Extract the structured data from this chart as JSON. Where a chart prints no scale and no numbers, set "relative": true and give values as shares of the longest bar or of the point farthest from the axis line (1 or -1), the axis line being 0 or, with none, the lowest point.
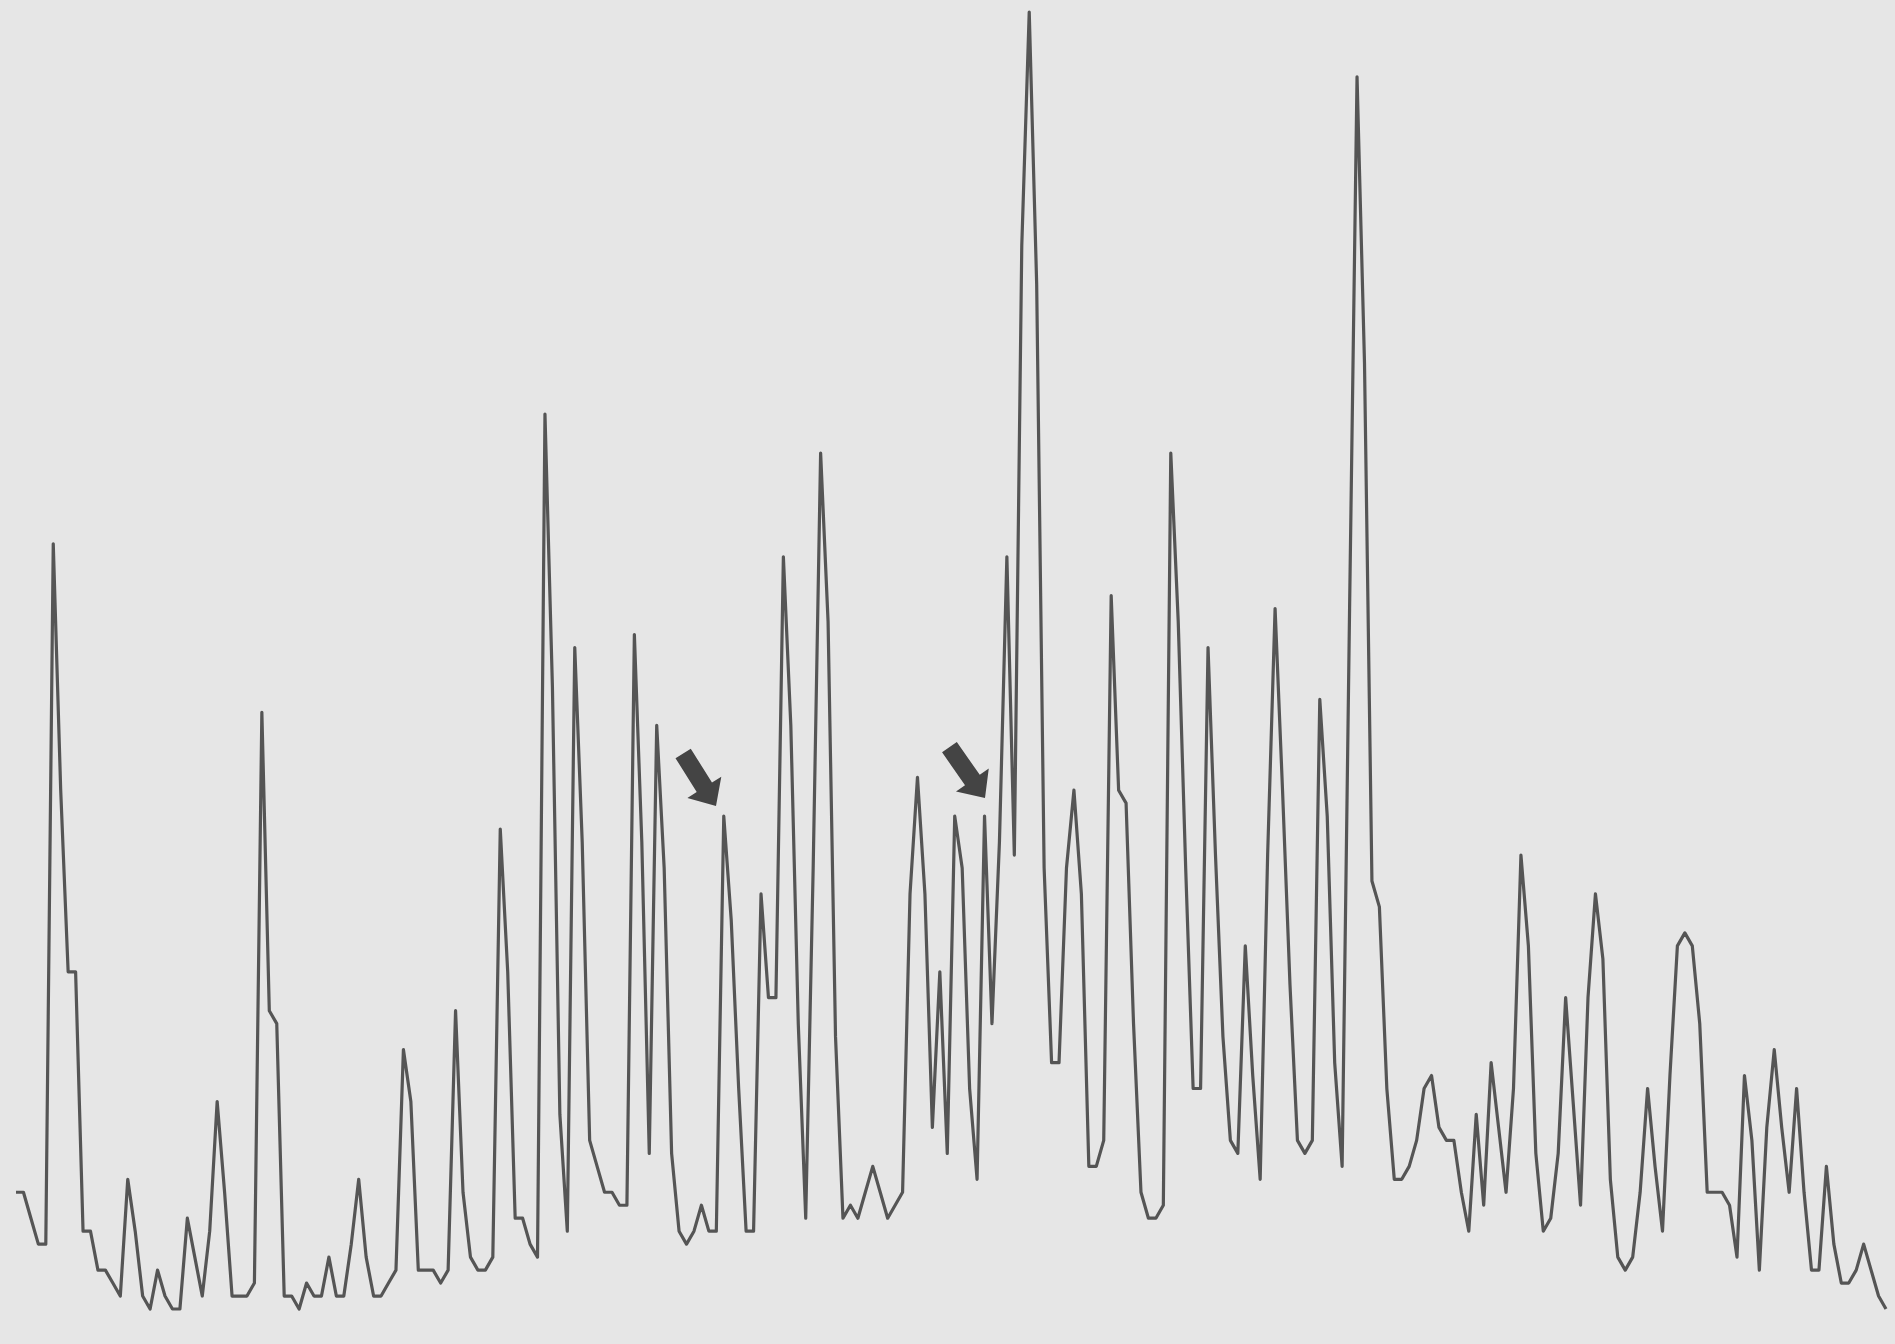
{
  "chart_data": {
    "type": "line",
    "relative": true,
    "categories": [
      null,
      null,
      null,
      null,
      null,
      null,
      null,
      null,
      null,
      null,
      null,
      null,
      null,
      null,
      null,
      null,
      null,
      null,
      null,
      null,
      null,
      null,
      null,
      null,
      null,
      null,
      null,
      null,
      null,
      null,
      null,
      null,
      null,
      null,
      null,
      null,
      null,
      null,
      null,
      null,
      null,
      null,
      null,
      null,
      null,
      null,
      null,
      null,
      null,
      null,
      null,
      null,
      null,
      null,
      null,
      null,
      null,
      null,
      null,
      null,
      null,
      null,
      null,
      null,
      null,
      null,
      null,
      null,
      null,
      null,
      null,
      null,
      null,
      null,
      null,
      null,
      null,
      null,
      null,
      null,
      null,
      null,
      null,
      null,
      null,
      null,
      null,
      null,
      null,
      null,
      null,
      null,
      null,
      null,
      null,
      null,
      null,
      null,
      null,
      null,
      null,
      null,
      null,
      null,
      null,
      null,
      null,
      null,
      null,
      null,
      null,
      null,
      null,
      null,
      null,
      null,
      null,
      null,
      null,
      null,
      null,
      null,
      null,
      null,
      null,
      null,
      null,
      null,
      null,
      null,
      null,
      null,
      null,
      null,
      null,
      null,
      null,
      null,
      null,
      null,
      null,
      null,
      null,
      null,
      null,
      null,
      null,
      null,
      null,
      null,
      null,
      null,
      null,
      null,
      null,
      null,
      null,
      null,
      null,
      null,
      null,
      null,
      null,
      null,
      null,
      null,
      null,
      null,
      null,
      null,
      null,
      null,
      null,
      null,
      null,
      null,
      null,
      null,
      null,
      null,
      null,
      null,
      null,
      null,
      null,
      null,
      null,
      null,
      null,
      null,
      null,
      null,
      null,
      null,
      null,
      null,
      null,
      null,
      null,
      null,
      null,
      null,
      null,
      null,
      null,
      null,
      null,
      null,
      null,
      null,
      null,
      null,
      null,
      null,
      null,
      null,
      null,
      null,
      null,
      null,
      null,
      null,
      null,
      null,
      null,
      null,
      null,
      null,
      null,
      null,
      null,
      null,
      null,
      null,
      null,
      null,
      null,
      null,
      null,
      null,
      null,
      null,
      null,
      null,
      null,
      null,
      null,
      null,
      null,
      null,
      null,
      null
    ],
    "series": [
      {
        "color": "#555555",
        "values": [
          0.09,
          0.09,
          0.07,
          0.05,
          0.05,
          0.59,
          0.4,
          0.26,
          0.26,
          0.06,
          0.06,
          0.03,
          0.03,
          0.02,
          0.01,
          0.1,
          0.06,
          0.01,
          0.0,
          0.03,
          0.01,
          0.0,
          0.0,
          0.07,
          0.04,
          0.01,
          0.06,
          0.16,
          0.09,
          0.01,
          0.01,
          0.01,
          0.02,
          0.46,
          0.23,
          0.22,
          0.01,
          0.01,
          0.0,
          0.02,
          0.01,
          0.01,
          0.04,
          0.01,
          0.01,
          0.05,
          0.1,
          0.04,
          0.01,
          0.01,
          0.02,
          0.03,
          0.2,
          0.16,
          0.03,
          0.03,
          0.03,
          0.02,
          0.03,
          0.23,
          0.09,
          0.04,
          0.03,
          0.03,
          0.04,
          0.37,
          0.26,
          0.07,
          0.07,
          0.05,
          0.04,
          0.69,
          0.48,
          0.15,
          0.06,
          0.51,
          0.36,
          0.13,
          0.11,
          0.09,
          0.09,
          0.08,
          0.08,
          0.52,
          0.36,
          0.12,
          0.45,
          0.34,
          0.12,
          0.06,
          0.05,
          0.06,
          0.08,
          0.06,
          0.06,
          0.38,
          0.3,
          0.17,
          0.06,
          0.06,
          0.32,
          0.24,
          0.24,
          0.58,
          0.45,
          0.22,
          0.07,
          0.34,
          0.66,
          0.53,
          0.21,
          0.07,
          0.08,
          0.07,
          0.09,
          0.11,
          0.09,
          0.07,
          0.08,
          0.09,
          0.32,
          0.41,
          0.32,
          0.14,
          0.26,
          0.12,
          0.38,
          0.34,
          0.17,
          0.1,
          0.38,
          0.22,
          0.36,
          0.58,
          0.35,
          0.82,
          1.0,
          0.79,
          0.34,
          0.19,
          0.19,
          0.34,
          0.4,
          0.32,
          0.11,
          0.11,
          0.13,
          0.55,
          0.4,
          0.39,
          0.22,
          0.09,
          0.07,
          0.07,
          0.08,
          0.66,
          0.53,
          0.34,
          0.17,
          0.17,
          0.51,
          0.35,
          0.21,
          0.13,
          0.12,
          0.28,
          0.18,
          0.1,
          0.35,
          0.54,
          0.4,
          0.25,
          0.13,
          0.12,
          0.13,
          0.47,
          0.38,
          0.19,
          0.11,
          0.54,
          0.95,
          0.73,
          0.33,
          0.31,
          0.17,
          0.1,
          0.1,
          0.11,
          0.13,
          0.17,
          0.18,
          0.14,
          0.13,
          0.13,
          0.09,
          0.06,
          0.15,
          0.08,
          0.19,
          0.14,
          0.09,
          0.17,
          0.35,
          0.28,
          0.12,
          0.06,
          0.07,
          0.12,
          0.24,
          0.16,
          0.08,
          0.24,
          0.32,
          0.27,
          0.1,
          0.04,
          0.03,
          0.04,
          0.09,
          0.17,
          0.11,
          0.06,
          0.18,
          0.28,
          0.29,
          0.28,
          0.22,
          0.09,
          0.09,
          0.09,
          0.08,
          0.04,
          0.18,
          0.13,
          0.03,
          0.14,
          0.2,
          0.14,
          0.09,
          0.17,
          0.09,
          0.03,
          0.03,
          0.11,
          0.05,
          0.02,
          0.02,
          0.03,
          0.05,
          0.03,
          0.01,
          0.0
        ]
      }
    ]
  }
}
